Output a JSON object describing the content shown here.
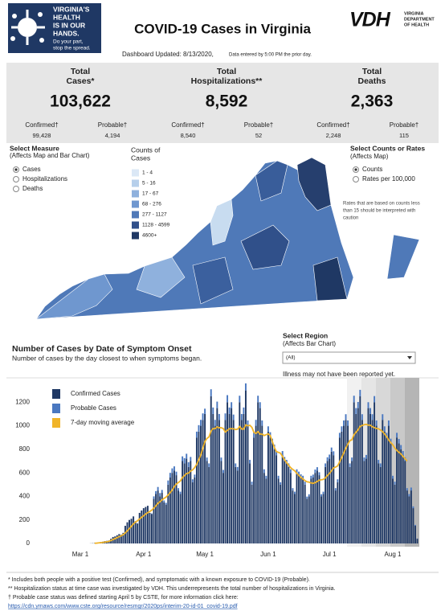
{
  "header": {
    "badge": [
      "VIRGINIA'S",
      "HEALTH",
      "IS IN OUR",
      "HANDS."
    ],
    "badge_sub": [
      "Do your part,",
      "stop the spread."
    ],
    "title": "COVID-19 Cases in Virginia",
    "logo": "VDH",
    "logo_sub": [
      "VIRGINIA",
      "DEPARTMENT",
      "OF HEALTH"
    ],
    "updated": "Dashboard Updated: 8/13/2020,",
    "updated_note": "Data entered by 5:00 PM the prior day."
  },
  "kpis": [
    {
      "label": [
        "Total",
        "Cases*"
      ],
      "value": "103,622",
      "parts": [
        {
          "label": "Confirmed†",
          "value": "99,428"
        },
        {
          "label": "Probable†",
          "value": "4,194"
        }
      ]
    },
    {
      "label": [
        "Total",
        "Hospitalizations**"
      ],
      "value": "8,592",
      "parts": [
        {
          "label": "Confirmed†",
          "value": "8,540"
        },
        {
          "label": "Probable†",
          "value": "52"
        }
      ]
    },
    {
      "label": [
        "Total",
        "Deaths"
      ],
      "value": "2,363",
      "parts": [
        {
          "label": "Confirmed†",
          "value": "2,248"
        },
        {
          "label": "Probable†",
          "value": "115"
        }
      ]
    }
  ],
  "measure": {
    "title": "Select Measure",
    "subtitle": "(Affects Map and Bar Chart)",
    "options": [
      "Cases",
      "Hospitalizations",
      "Deaths"
    ]
  },
  "map_legend": {
    "title": [
      "Counts of",
      "Cases"
    ],
    "ranges": [
      "1 - 4",
      "5 - 16",
      "17 - 67",
      "68 - 276",
      "277 - 1127",
      "1128 - 4599",
      "4600+"
    ]
  },
  "rates": {
    "title": "Select Counts or Rates",
    "subtitle": "(Affects Map)",
    "options": [
      "Counts",
      "Rates per 100,000"
    ],
    "note": [
      "Rates that are based on counts less",
      "than 15 should be interpreted with",
      "caution"
    ]
  },
  "region": {
    "title": "Select Region",
    "subtitle": "(Affects Bar Chart)",
    "selected": "(All)",
    "note": "Illness may not have been reported yet."
  },
  "chart_data": {
    "type": "bar",
    "stacked": true,
    "title": "Number of Cases by Date of Symptom Onset",
    "subtitle": "Number of cases by the day closest to when symptoms began.",
    "categories": [
      "Mar 1",
      null,
      null,
      null,
      null,
      null,
      null,
      null,
      null,
      null,
      null,
      null,
      null,
      null,
      null,
      null,
      null,
      null,
      null,
      null,
      null,
      null,
      null,
      null,
      null,
      null,
      null,
      null,
      null,
      null,
      null,
      "Apr 1",
      null,
      null,
      null,
      null,
      null,
      null,
      null,
      null,
      null,
      null,
      null,
      null,
      null,
      null,
      null,
      null,
      null,
      null,
      null,
      null,
      null,
      null,
      null,
      null,
      null,
      null,
      null,
      null,
      null,
      "May 1",
      null,
      null,
      null,
      null,
      null,
      null,
      null,
      null,
      null,
      null,
      null,
      null,
      null,
      null,
      null,
      null,
      null,
      null,
      null,
      null,
      null,
      null,
      null,
      null,
      null,
      null,
      null,
      null,
      null,
      null,
      "Jun 1",
      null,
      null,
      null,
      null,
      null,
      null,
      null,
      null,
      null,
      null,
      null,
      null,
      null,
      null,
      null,
      null,
      null,
      null,
      null,
      null,
      null,
      null,
      null,
      null,
      null,
      null,
      null,
      null,
      null,
      "Jul 1",
      null,
      null,
      null,
      null,
      null,
      null,
      null,
      null,
      null,
      null,
      null,
      null,
      null,
      null,
      null,
      null,
      null,
      null,
      null,
      null,
      null,
      null,
      null,
      null,
      null,
      null,
      null,
      null,
      null,
      null,
      "Aug 1",
      null,
      null,
      null,
      null,
      null,
      null,
      null,
      null,
      null,
      null,
      null,
      null
    ],
    "series": [
      {
        "name": "Confirmed Cases",
        "color": "#1f3864",
        "values": [
          0,
          0,
          0,
          0,
          0,
          1,
          2,
          3,
          5,
          8,
          12,
          15,
          20,
          22,
          25,
          40,
          55,
          60,
          70,
          80,
          75,
          90,
          150,
          180,
          200,
          210,
          230,
          190,
          170,
          260,
          280,
          300,
          310,
          320,
          260,
          250,
          380,
          420,
          450,
          400,
          430,
          350,
          330,
          500,
          560,
          600,
          620,
          580,
          450,
          420,
          700,
          680,
          720,
          650,
          700,
          520,
          560,
          900,
          950,
          1000,
          1050,
          1100,
          700,
          650,
          1250,
          1100,
          1000,
          1150,
          1050,
          700,
          600,
          1050,
          1200,
          1100,
          1150,
          1050,
          650,
          620,
          1200,
          1050,
          1100,
          1300,
          1000,
          680,
          500,
          900,
          1000,
          1200,
          1150,
          1000,
          600,
          550,
          950,
          900,
          850,
          800,
          750,
          550,
          500,
          750,
          700,
          680,
          650,
          600,
          450,
          420,
          600,
          580,
          560,
          550,
          500,
          380,
          400,
          550,
          560,
          600,
          620,
          580,
          400,
          420,
          650,
          700,
          720,
          780,
          750,
          450,
          520,
          900,
          950,
          1000,
          1050,
          1000,
          650,
          700,
          1200,
          1100,
          1150,
          1250,
          1050,
          700,
          720,
          1150,
          1100,
          1050,
          1200,
          1000,
          680,
          650,
          1050,
          950,
          900,
          1000,
          850,
          550,
          500,
          900,
          850,
          800,
          750,
          700,
          450,
          400,
          450,
          300,
          150,
          40
        ]
      },
      {
        "name": "Probable Cases",
        "color": "#4a78c0",
        "values": [
          0,
          0,
          0,
          0,
          0,
          0,
          0,
          0,
          0,
          0,
          0,
          0,
          0,
          0,
          0,
          0,
          0,
          0,
          0,
          0,
          0,
          0,
          0,
          0,
          0,
          0,
          0,
          0,
          0,
          0,
          0,
          0,
          0,
          0,
          0,
          5,
          20,
          25,
          30,
          28,
          25,
          15,
          15,
          35,
          40,
          38,
          35,
          30,
          20,
          20,
          40,
          45,
          42,
          40,
          35,
          25,
          25,
          50,
          55,
          50,
          55,
          45,
          30,
          30,
          60,
          55,
          50,
          55,
          50,
          30,
          25,
          55,
          60,
          55,
          50,
          45,
          30,
          30,
          55,
          50,
          55,
          60,
          45,
          30,
          25,
          45,
          50,
          55,
          50,
          45,
          30,
          25,
          45,
          45,
          40,
          40,
          35,
          25,
          20,
          35,
          35,
          30,
          30,
          30,
          20,
          20,
          30,
          30,
          28,
          25,
          25,
          18,
          18,
          25,
          25,
          28,
          28,
          25,
          18,
          20,
          30,
          32,
          35,
          35,
          33,
          20,
          25,
          40,
          45,
          45,
          48,
          45,
          30,
          30,
          55,
          50,
          52,
          55,
          48,
          30,
          32,
          50,
          50,
          48,
          52,
          45,
          30,
          30,
          48,
          45,
          40,
          45,
          40,
          25,
          25,
          40,
          38,
          36,
          35,
          32,
          20,
          20,
          25,
          15,
          8,
          2
        ]
      },
      {
        "name": "7-day moving average",
        "type": "line",
        "color": "#f0b429",
        "values": [
          null,
          null,
          null,
          null,
          null,
          null,
          null,
          2,
          3,
          5,
          7,
          9,
          12,
          14,
          18,
          25,
          33,
          41,
          49,
          58,
          65,
          75,
          90,
          108,
          126,
          146,
          166,
          182,
          193,
          208,
          222,
          236,
          250,
          262,
          272,
          283,
          300,
          320,
          341,
          355,
          370,
          383,
          394,
          412,
          432,
          453,
          483,
          504,
          518,
          531,
          560,
          577,
          594,
          598,
          615,
          625,
          645,
          673,
          712,
          752,
          809,
          866,
          892,
          905,
          955,
          976,
          976,
          990,
          983,
          983,
          976,
          947,
          961,
          975,
          975,
          975,
          968,
          971,
          993,
          972,
          972,
          1007,
          1000,
          1004,
          987,
          944,
          936,
          950,
          929,
          929,
          917,
          924,
          931,
          917,
          867,
          817,
          781,
          774,
          767,
          739,
          711,
          687,
          665,
          644,
          629,
          617,
          596,
          579,
          562,
          548,
          534,
          524,
          521,
          514,
          511,
          517,
          527,
          538,
          541,
          544,
          558,
          578,
          595,
          618,
          642,
          649,
          659,
          695,
          730,
          770,
          809,
          845,
          874,
          881,
          924,
          945,
          966,
          995,
          1002,
          1009,
          1012,
          1005,
          1005,
          991,
          984,
          977,
          974,
          964,
          950,
          929,
          907,
          879,
          857,
          838,
          810,
          790,
          775,
          760,
          740,
          720,
          700,
          null,
          null,
          null,
          null,
          null
        ]
      }
    ],
    "ylim": [
      0,
      1400
    ],
    "yticks": [
      0,
      200,
      400,
      600,
      800,
      1000,
      1200
    ],
    "grid": false
  },
  "footnotes": [
    "* Includes both people with a positive test (Confirmed), and symptomatic with a known exposure to COVID-19 (Probable).",
    "** Hospitalization status at time case was investigated by VDH. This underrepresents the total number of hospitalizations in Virginia.",
    "† Probable case status was defined starting April 5 by CSTE, for more information click here:"
  ],
  "link": "https://cdn.ymaws.com/www.cste.org/resource/resmgr/2020ps/interim-20-id-01_covid-19.pdf"
}
